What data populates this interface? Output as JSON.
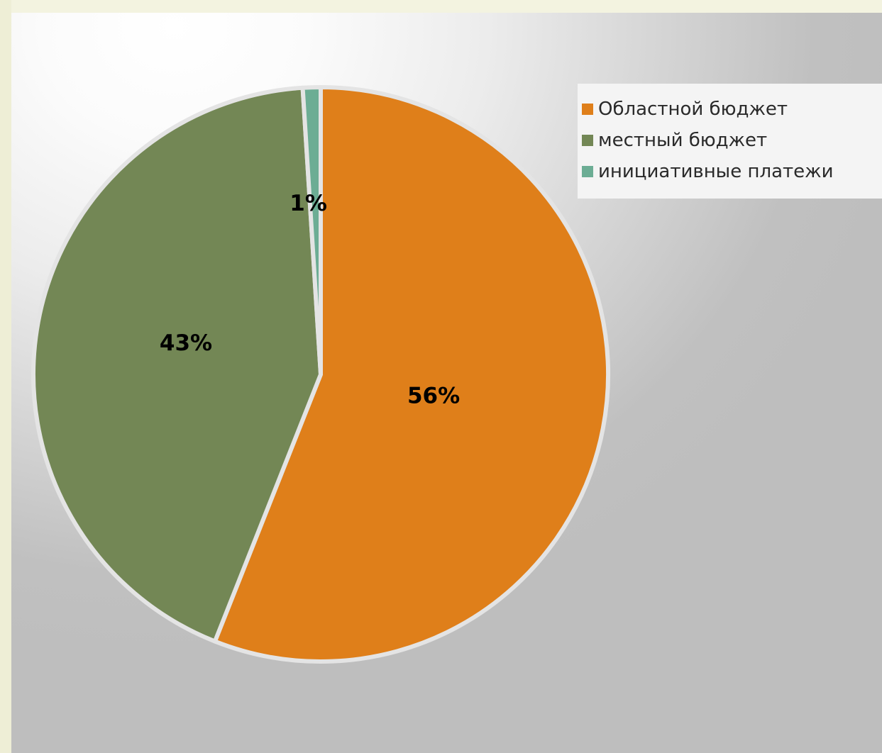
{
  "chart_data": {
    "type": "pie",
    "title": "",
    "start_angle_deg": 0,
    "direction": "clockwise",
    "legend_position": "top-right",
    "slices": [
      {
        "name": "Областной бюджет",
        "value": 56,
        "label": "56%",
        "color": "#df7f1a"
      },
      {
        "name": "местный бюджет",
        "value": 43,
        "label": "43%",
        "color": "#738755"
      },
      {
        "name": "инициативные платежи",
        "value": 1,
        "label": "1%",
        "color": "#6cad94"
      }
    ]
  }
}
